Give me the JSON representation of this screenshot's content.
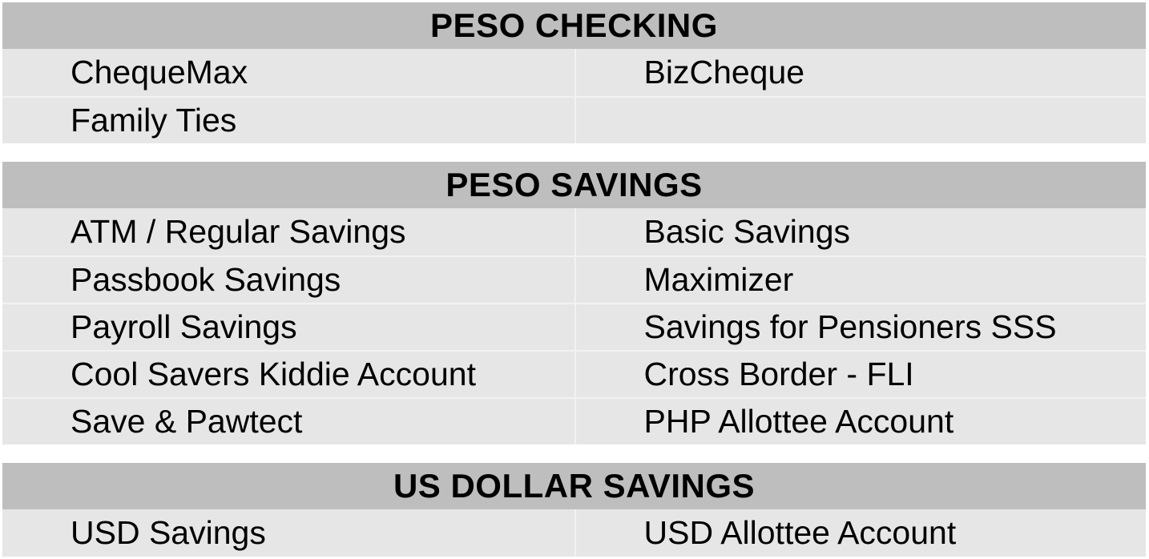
{
  "colors": {
    "header_bg": "#bebebe",
    "cell_bg": "#e6e6e6",
    "divider": "#f2f2f2",
    "text": "#000000",
    "page_bg": "#ffffff"
  },
  "sections": [
    {
      "title": "PESO CHECKING",
      "rows": [
        [
          "ChequeMax",
          "BizCheque"
        ],
        [
          "Family Ties",
          ""
        ]
      ]
    },
    {
      "title": "PESO SAVINGS",
      "rows": [
        [
          "ATM / Regular Savings",
          "Basic Savings"
        ],
        [
          "Passbook Savings",
          "Maximizer"
        ],
        [
          "Payroll Savings",
          "Savings for Pensioners SSS"
        ],
        [
          "Cool Savers Kiddie Account",
          "Cross Border - FLI"
        ],
        [
          "Save & Pawtect",
          "PHP Allottee Account"
        ]
      ]
    },
    {
      "title": "US DOLLAR SAVINGS",
      "rows": [
        [
          "USD Savings",
          "USD Allottee Account"
        ]
      ]
    }
  ]
}
